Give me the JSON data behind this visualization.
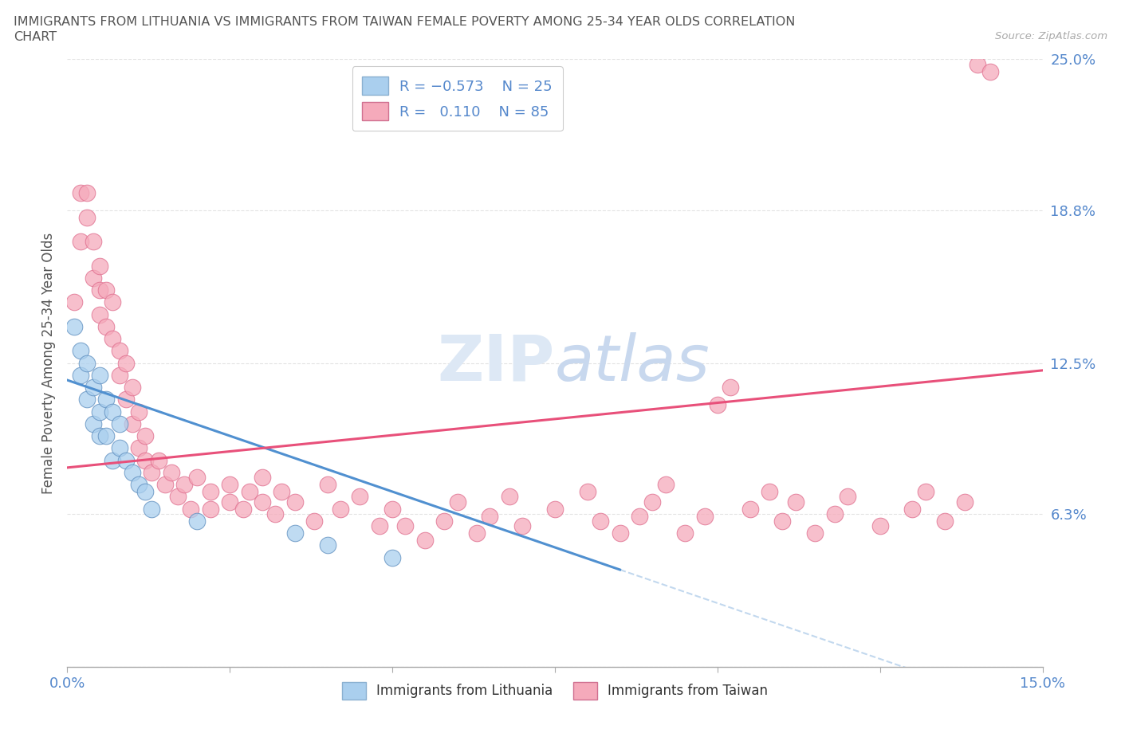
{
  "title_line1": "IMMIGRANTS FROM LITHUANIA VS IMMIGRANTS FROM TAIWAN FEMALE POVERTY AMONG 25-34 YEAR OLDS CORRELATION",
  "title_line2": "CHART",
  "source_text": "Source: ZipAtlas.com",
  "ylabel": "Female Poverty Among 25-34 Year Olds",
  "xlim": [
    0.0,
    0.15
  ],
  "ylim": [
    0.0,
    0.25
  ],
  "yticks": [
    0.0,
    0.063,
    0.125,
    0.188,
    0.25
  ],
  "ytick_labels": [
    "",
    "6.3%",
    "12.5%",
    "18.8%",
    "25.0%"
  ],
  "xticks": [
    0.0,
    0.05,
    0.1,
    0.15
  ],
  "xtick_labels": [
    "0.0%",
    "",
    "",
    "15.0%"
  ],
  "color_lithuania": "#aacfee",
  "color_taiwan": "#f5aabb",
  "color_trend_lithuania": "#5090d0",
  "color_trend_taiwan": "#e8507a",
  "color_title": "#555555",
  "color_axis_ticks": "#5588cc",
  "color_source": "#aaaaaa",
  "watermark_color": "#dde8f5",
  "lithuania_trend_x0": 0.0,
  "lithuania_trend_y0": 0.118,
  "lithuania_trend_x1": 0.085,
  "lithuania_trend_y1": 0.04,
  "taiwan_trend_x0": 0.0,
  "taiwan_trend_x1": 0.15,
  "taiwan_trend_y0": 0.082,
  "taiwan_trend_y1": 0.122,
  "lithuania_points": [
    [
      0.001,
      0.14
    ],
    [
      0.002,
      0.13
    ],
    [
      0.002,
      0.12
    ],
    [
      0.003,
      0.125
    ],
    [
      0.003,
      0.11
    ],
    [
      0.004,
      0.115
    ],
    [
      0.004,
      0.1
    ],
    [
      0.005,
      0.12
    ],
    [
      0.005,
      0.105
    ],
    [
      0.005,
      0.095
    ],
    [
      0.006,
      0.11
    ],
    [
      0.006,
      0.095
    ],
    [
      0.007,
      0.105
    ],
    [
      0.007,
      0.085
    ],
    [
      0.008,
      0.1
    ],
    [
      0.008,
      0.09
    ],
    [
      0.009,
      0.085
    ],
    [
      0.01,
      0.08
    ],
    [
      0.011,
      0.075
    ],
    [
      0.012,
      0.072
    ],
    [
      0.013,
      0.065
    ],
    [
      0.02,
      0.06
    ],
    [
      0.035,
      0.055
    ],
    [
      0.04,
      0.05
    ],
    [
      0.05,
      0.045
    ]
  ],
  "taiwan_points": [
    [
      0.001,
      0.15
    ],
    [
      0.002,
      0.195
    ],
    [
      0.002,
      0.175
    ],
    [
      0.003,
      0.195
    ],
    [
      0.003,
      0.185
    ],
    [
      0.004,
      0.175
    ],
    [
      0.004,
      0.16
    ],
    [
      0.005,
      0.165
    ],
    [
      0.005,
      0.155
    ],
    [
      0.005,
      0.145
    ],
    [
      0.006,
      0.155
    ],
    [
      0.006,
      0.14
    ],
    [
      0.007,
      0.15
    ],
    [
      0.007,
      0.135
    ],
    [
      0.008,
      0.13
    ],
    [
      0.008,
      0.12
    ],
    [
      0.009,
      0.125
    ],
    [
      0.009,
      0.11
    ],
    [
      0.01,
      0.115
    ],
    [
      0.01,
      0.1
    ],
    [
      0.011,
      0.105
    ],
    [
      0.011,
      0.09
    ],
    [
      0.012,
      0.095
    ],
    [
      0.012,
      0.085
    ],
    [
      0.013,
      0.08
    ],
    [
      0.014,
      0.085
    ],
    [
      0.015,
      0.075
    ],
    [
      0.016,
      0.08
    ],
    [
      0.017,
      0.07
    ],
    [
      0.018,
      0.075
    ],
    [
      0.019,
      0.065
    ],
    [
      0.02,
      0.078
    ],
    [
      0.022,
      0.072
    ],
    [
      0.022,
      0.065
    ],
    [
      0.025,
      0.068
    ],
    [
      0.025,
      0.075
    ],
    [
      0.027,
      0.065
    ],
    [
      0.028,
      0.072
    ],
    [
      0.03,
      0.068
    ],
    [
      0.03,
      0.078
    ],
    [
      0.032,
      0.063
    ],
    [
      0.033,
      0.072
    ],
    [
      0.035,
      0.068
    ],
    [
      0.038,
      0.06
    ],
    [
      0.04,
      0.075
    ],
    [
      0.042,
      0.065
    ],
    [
      0.045,
      0.07
    ],
    [
      0.048,
      0.058
    ],
    [
      0.05,
      0.065
    ],
    [
      0.052,
      0.058
    ],
    [
      0.055,
      0.052
    ],
    [
      0.058,
      0.06
    ],
    [
      0.06,
      0.068
    ],
    [
      0.063,
      0.055
    ],
    [
      0.065,
      0.062
    ],
    [
      0.068,
      0.07
    ],
    [
      0.07,
      0.058
    ],
    [
      0.075,
      0.065
    ],
    [
      0.08,
      0.072
    ],
    [
      0.082,
      0.06
    ],
    [
      0.085,
      0.055
    ],
    [
      0.088,
      0.062
    ],
    [
      0.09,
      0.068
    ],
    [
      0.092,
      0.075
    ],
    [
      0.095,
      0.055
    ],
    [
      0.098,
      0.062
    ],
    [
      0.1,
      0.108
    ],
    [
      0.102,
      0.115
    ],
    [
      0.105,
      0.065
    ],
    [
      0.108,
      0.072
    ],
    [
      0.11,
      0.06
    ],
    [
      0.112,
      0.068
    ],
    [
      0.115,
      0.055
    ],
    [
      0.118,
      0.063
    ],
    [
      0.12,
      0.07
    ],
    [
      0.125,
      0.058
    ],
    [
      0.13,
      0.065
    ],
    [
      0.132,
      0.072
    ],
    [
      0.135,
      0.06
    ],
    [
      0.138,
      0.068
    ],
    [
      0.14,
      0.248
    ],
    [
      0.142,
      0.245
    ]
  ]
}
